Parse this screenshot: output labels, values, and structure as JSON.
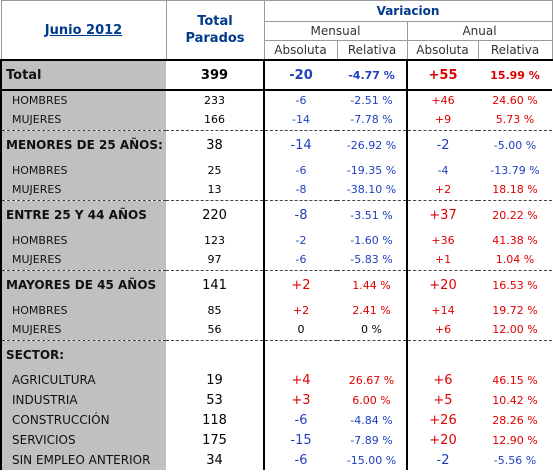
{
  "header": {
    "period": "Junio 2012",
    "total_label_1": "Total",
    "total_label_2": "Parados",
    "variacion": "Variacion",
    "mensual": "Mensual",
    "anual": "Anual",
    "absoluta": "Absoluta",
    "relativa": "Relativa"
  },
  "total": {
    "label": "Total",
    "parados": "399",
    "m_abs": "-20",
    "m_rel": "-4.77 %",
    "a_abs": "+55",
    "a_rel": "15.99 %"
  },
  "rows": [
    {
      "label": "HOMBRES",
      "parados": "233",
      "m_abs": "-6",
      "m_rel": "-2.51 %",
      "a_abs": "+46",
      "a_rel": "24.60 %"
    },
    {
      "label": "MUJERES",
      "parados": "166",
      "m_abs": "-14",
      "m_rel": "-7.78 %",
      "a_abs": "+9",
      "a_rel": "5.73 %"
    },
    {
      "label": "MENORES DE 25 AÑOS:",
      "parados": "38",
      "m_abs": "-14",
      "m_rel": "-26.92 %",
      "a_abs": "-2",
      "a_rel": "-5.00 %"
    },
    {
      "label": "HOMBRES",
      "parados": "25",
      "m_abs": "-6",
      "m_rel": "-19.35 %",
      "a_abs": "-4",
      "a_rel": "-13.79 %"
    },
    {
      "label": "MUJERES",
      "parados": "13",
      "m_abs": "-8",
      "m_rel": "-38.10 %",
      "a_abs": "+2",
      "a_rel": "18.18 %"
    },
    {
      "label": "ENTRE 25 Y 44 AÑOS",
      "parados": "220",
      "m_abs": "-8",
      "m_rel": "-3.51 %",
      "a_abs": "+37",
      "a_rel": "20.22 %"
    },
    {
      "label": "HOMBRES",
      "parados": "123",
      "m_abs": "-2",
      "m_rel": "-1.60 %",
      "a_abs": "+36",
      "a_rel": "41.38 %"
    },
    {
      "label": "MUJERES",
      "parados": "97",
      "m_abs": "-6",
      "m_rel": "-5.83 %",
      "a_abs": "+1",
      "a_rel": "1.04 %"
    },
    {
      "label": "MAYORES DE 45 AÑOS",
      "parados": "141",
      "m_abs": "+2",
      "m_rel": "1.44 %",
      "a_abs": "+20",
      "a_rel": "16.53 %"
    },
    {
      "label": "HOMBRES",
      "parados": "85",
      "m_abs": "+2",
      "m_rel": "2.41 %",
      "a_abs": "+14",
      "a_rel": "19.72 %"
    },
    {
      "label": "MUJERES",
      "parados": "56",
      "m_abs": "0",
      "m_rel": "0 %",
      "a_abs": "+6",
      "a_rel": "12.00 %"
    },
    {
      "label": "SECTOR:",
      "parados": "",
      "m_abs": "",
      "m_rel": "",
      "a_abs": "",
      "a_rel": ""
    },
    {
      "label": "AGRICULTURA",
      "parados": "19",
      "m_abs": "+4",
      "m_rel": "26.67 %",
      "a_abs": "+6",
      "a_rel": "46.15 %"
    },
    {
      "label": "INDUSTRIA",
      "parados": "53",
      "m_abs": "+3",
      "m_rel": "6.00 %",
      "a_abs": "+5",
      "a_rel": "10.42 %"
    },
    {
      "label": "CONSTRUCCIÓN",
      "parados": "118",
      "m_abs": "-6",
      "m_rel": "-4.84 %",
      "a_abs": "+26",
      "a_rel": "28.26 %"
    },
    {
      "label": "SERVICIOS",
      "parados": "175",
      "m_abs": "-15",
      "m_rel": "-7.89 %",
      "a_abs": "+20",
      "a_rel": "12.90 %"
    },
    {
      "label": "SIN EMPLEO ANTERIOR",
      "parados": "34",
      "m_abs": "-6",
      "m_rel": "-15.00 %",
      "a_abs": "-2",
      "a_rel": "-5.56 %"
    }
  ],
  "colors": {
    "header_yellow": "#ffff00",
    "subheader_cyan": "#ccffff",
    "label_gray": "#c0c0c0",
    "negative_blue": "#1f3fbf",
    "positive_red": "#e00000"
  }
}
